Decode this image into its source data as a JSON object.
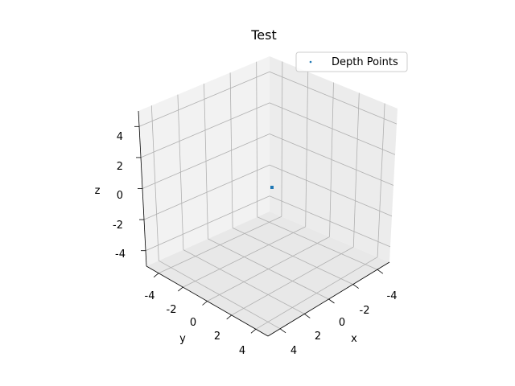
{
  "chart_data": {
    "type": "scatter",
    "title": "Test",
    "xlabel": "x",
    "ylabel": "y",
    "zlabel": "z",
    "xlim": [
      -5,
      5
    ],
    "ylim": [
      -5,
      5
    ],
    "zlim": [
      -5,
      5
    ],
    "xticks": [
      "-4",
      "-2",
      "0",
      "2",
      "4"
    ],
    "yticks": [
      "-4",
      "-2",
      "0",
      "2",
      "4"
    ],
    "zticks": [
      "4",
      "2",
      "0",
      "-2",
      "-4"
    ],
    "grid": true,
    "legend_position": "top-right",
    "series": [
      {
        "name": "Depth Points",
        "color": "#1f77b4",
        "points": [
          [
            0,
            0,
            0
          ]
        ]
      }
    ]
  }
}
